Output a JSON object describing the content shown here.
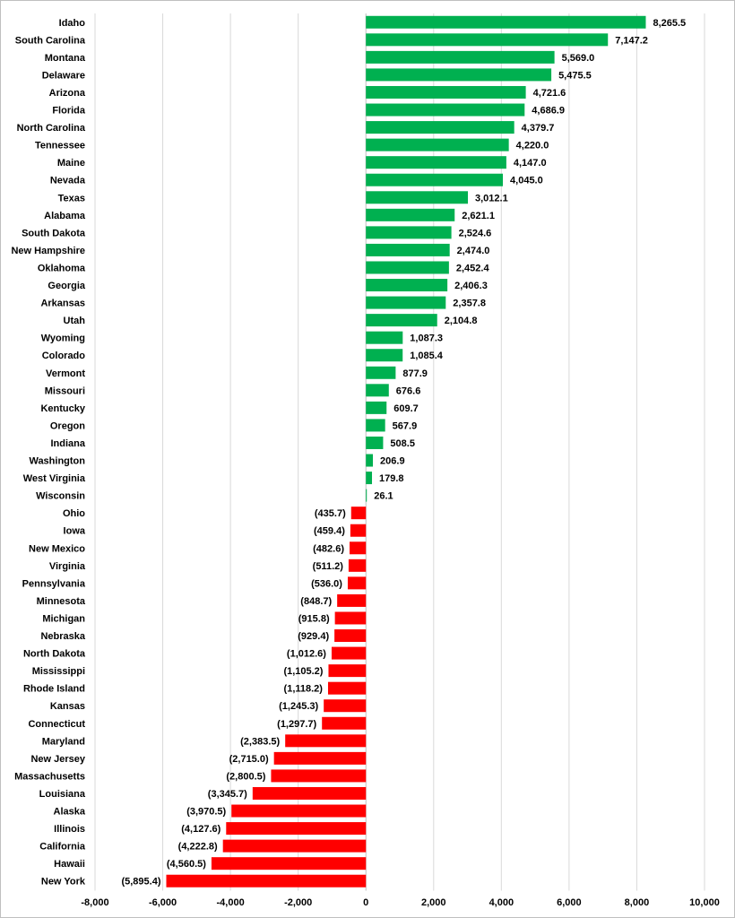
{
  "chart_data": {
    "type": "bar",
    "orientation": "horizontal",
    "title": "",
    "xlabel": "",
    "ylabel": "",
    "xlim": [
      -8000,
      10000
    ],
    "x_ticks": [
      -8000,
      -6000,
      -4000,
      -2000,
      0,
      2000,
      4000,
      6000,
      8000,
      10000
    ],
    "x_tick_labels": [
      "-8,000",
      "-6,000",
      "-4,000",
      "-2,000",
      "0",
      "2,000",
      "4,000",
      "6,000",
      "8,000",
      "10,000"
    ],
    "grid": "vertical",
    "legend": "none",
    "colors": {
      "positive": "#00b050",
      "negative": "#ff0000",
      "grid": "#d9d9d9",
      "frame": "#bfbfbf"
    },
    "categories": [
      "Idaho",
      "South Carolina",
      "Montana",
      "Delaware",
      "Arizona",
      "Florida",
      "North Carolina",
      "Tennessee",
      "Maine",
      "Nevada",
      "Texas",
      "Alabama",
      "South Dakota",
      "New Hampshire",
      "Oklahoma",
      "Georgia",
      "Arkansas",
      "Utah",
      "Wyoming",
      "Colorado",
      "Vermont",
      "Missouri",
      "Kentucky",
      "Oregon",
      "Indiana",
      "Washington",
      "West Virginia",
      "Wisconsin",
      "Ohio",
      "Iowa",
      "New Mexico",
      "Virginia",
      "Pennsylvania",
      "Minnesota",
      "Michigan",
      "Nebraska",
      "North Dakota",
      "Mississippi",
      "Rhode Island",
      "Kansas",
      "Connecticut",
      "Maryland",
      "New Jersey",
      "Massachusetts",
      "Louisiana",
      "Alaska",
      "Illinois",
      "California",
      "Hawaii",
      "New York"
    ],
    "values": [
      8265.5,
      7147.2,
      5569.0,
      5475.5,
      4721.6,
      4686.9,
      4379.7,
      4220.0,
      4147.0,
      4045.0,
      3012.1,
      2621.1,
      2524.6,
      2474.0,
      2452.4,
      2406.3,
      2357.8,
      2104.8,
      1087.3,
      1085.4,
      877.9,
      676.6,
      609.7,
      567.9,
      508.5,
      206.9,
      179.8,
      26.1,
      -435.7,
      -459.4,
      -482.6,
      -511.2,
      -536.0,
      -848.7,
      -915.8,
      -929.4,
      -1012.6,
      -1105.2,
      -1118.2,
      -1245.3,
      -1297.7,
      -2383.5,
      -2715.0,
      -2800.5,
      -3345.7,
      -3970.5,
      -4127.6,
      -4222.8,
      -4560.5,
      -5895.4
    ],
    "value_labels": [
      "8,265.5",
      "7,147.2",
      "5,569.0",
      "5,475.5",
      "4,721.6",
      "4,686.9",
      "4,379.7",
      "4,220.0",
      "4,147.0",
      "4,045.0",
      "3,012.1",
      "2,621.1",
      "2,524.6",
      "2,474.0",
      "2,452.4",
      "2,406.3",
      "2,357.8",
      "2,104.8",
      "1,087.3",
      "1,085.4",
      "877.9",
      "676.6",
      "609.7",
      "567.9",
      "508.5",
      "206.9",
      "179.8",
      "26.1",
      "(435.7)",
      "(459.4)",
      "(482.6)",
      "(511.2)",
      "(536.0)",
      "(848.7)",
      "(915.8)",
      "(929.4)",
      "(1,012.6)",
      "(1,105.2)",
      "(1,118.2)",
      "(1,245.3)",
      "(1,297.7)",
      "(2,383.5)",
      "(2,715.0)",
      "(2,800.5)",
      "(3,345.7)",
      "(3,970.5)",
      "(4,127.6)",
      "(4,222.8)",
      "(4,560.5)",
      "(5,895.4)"
    ]
  }
}
